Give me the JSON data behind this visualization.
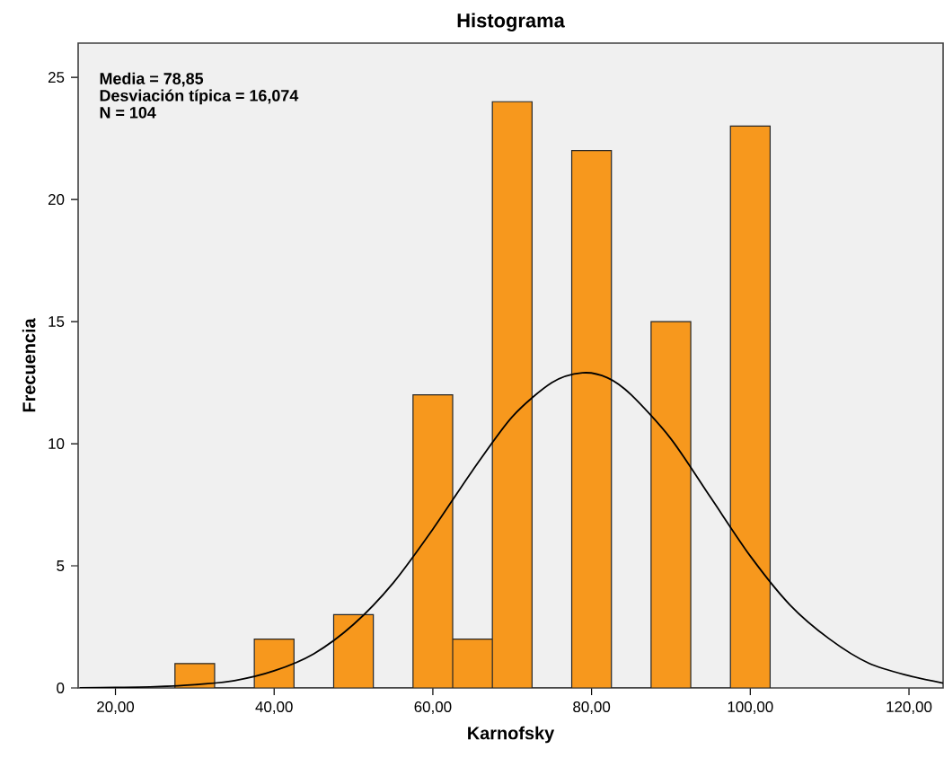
{
  "chart_data": {
    "type": "histogram",
    "title": "Histograma",
    "xlabel": "Karnofsky",
    "ylabel": "Frecuencia",
    "annotations": [
      "Media = 78,85",
      "Desviación típica = 16,074",
      "N = 104"
    ],
    "series": [
      {
        "color": "#f7981d",
        "bins": [
          27.5,
          32.5,
          37.5,
          42.5,
          47.5,
          52.5,
          57.5,
          62.5,
          67.5,
          72.5,
          77.5,
          82.5,
          87.5,
          92.5,
          97.5,
          102.5
        ],
        "values": [
          1,
          0,
          2,
          0,
          3,
          0,
          12,
          2,
          24,
          0,
          22,
          0,
          15,
          0,
          23
        ]
      },
      {
        "type": "line",
        "color": "#000000",
        "x": [
          15.5,
          20,
          25,
          30,
          35,
          40,
          45,
          50,
          55,
          60,
          65,
          70,
          75,
          78.85,
          82,
          85,
          90,
          95,
          100,
          105,
          110,
          115,
          120,
          124.3
        ],
        "values": [
          0.0,
          0.02,
          0.05,
          0.13,
          0.3,
          0.7,
          1.4,
          2.6,
          4.3,
          6.5,
          8.9,
          11.1,
          12.5,
          12.9,
          12.7,
          12.0,
          10.2,
          7.8,
          5.4,
          3.4,
          2.0,
          1.0,
          0.5,
          0.2
        ]
      }
    ],
    "xlim": [
      15.3,
      124.3
    ],
    "ylim": [
      0,
      26.4
    ],
    "xticks": [
      {
        "value": 20,
        "label": "20,00"
      },
      {
        "value": 40,
        "label": "40,00"
      },
      {
        "value": 60,
        "label": "60,00"
      },
      {
        "value": 80,
        "label": "80,00"
      },
      {
        "value": 100,
        "label": "100,00"
      },
      {
        "value": 120,
        "label": "120,00"
      }
    ],
    "yticks": [
      0,
      5,
      10,
      15,
      20,
      25
    ]
  }
}
